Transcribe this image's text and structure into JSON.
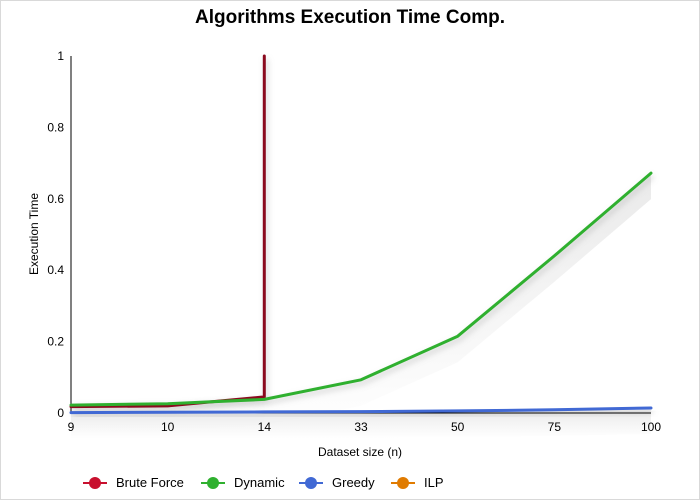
{
  "chart_data": {
    "type": "line",
    "title": "Algorithms Execution Time Comp.",
    "xlabel": "Dataset size (n)",
    "ylabel": "Execution Time",
    "categories": [
      "9",
      "10",
      "14",
      "33",
      "50",
      "75",
      "100"
    ],
    "ylim": [
      0,
      1
    ],
    "yticks": [
      "0",
      "0.2",
      "0.4",
      "0.6",
      "0.8",
      "1"
    ],
    "ytick_values": [
      0,
      0.2,
      0.4,
      0.6,
      0.8,
      1
    ],
    "series": [
      {
        "name": "Brute Force",
        "color": "#8b0a1e",
        "marker_color": "#c8102e",
        "points": [
          [
            0,
            0.018
          ],
          [
            1,
            0.02
          ],
          [
            2,
            0.045
          ],
          [
            2,
            1.0
          ]
        ]
      },
      {
        "name": "Dynamic",
        "color": "#2fb02f",
        "marker_color": "#2fb02f",
        "points": [
          [
            0,
            0.022
          ],
          [
            1,
            0.026
          ],
          [
            2,
            0.038
          ],
          [
            3,
            0.093
          ],
          [
            4,
            0.215
          ],
          [
            5,
            0.44
          ],
          [
            6,
            0.672
          ]
        ]
      },
      {
        "name": "Greedy",
        "color": "#4169d4",
        "marker_color": "#4169d4",
        "points": [
          [
            0,
            0.001
          ],
          [
            1,
            0.002
          ],
          [
            2,
            0.003
          ],
          [
            3,
            0.004
          ],
          [
            4,
            0.006
          ],
          [
            5,
            0.009
          ],
          [
            6,
            0.014
          ]
        ]
      },
      {
        "name": "ILP",
        "color": "#e07b00",
        "marker_color": "#e07b00",
        "points": []
      }
    ],
    "legend_position": "bottom-left",
    "grid": false
  }
}
